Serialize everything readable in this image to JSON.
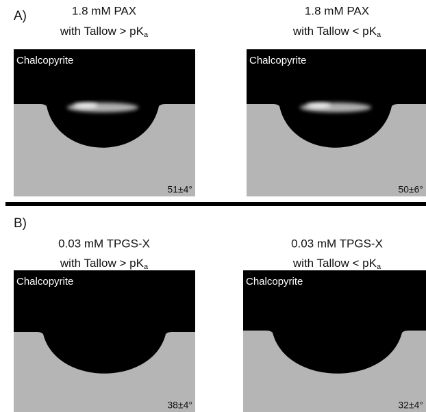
{
  "panels": [
    {
      "label": "A)",
      "images": [
        {
          "title": "1.8 mM PAX",
          "subtitle": "with Tallow > pK",
          "subscript": "a",
          "mineral": "Chalcopyrite",
          "angle": "51±4°"
        },
        {
          "title": "1.8 mM PAX",
          "subtitle": "with Tallow < pK",
          "subscript": "a",
          "mineral": "Chalcopyrite",
          "angle": "50±6°"
        }
      ]
    },
    {
      "label": "B)",
      "images": [
        {
          "title": "0.03 mM TPGS-X",
          "subtitle": "with Tallow > pK",
          "subscript": "a",
          "mineral": "Chalcopyrite",
          "angle": "38±4°"
        },
        {
          "title": "0.03 mM TPGS-X",
          "subtitle": "with Tallow < pK",
          "subscript": "a",
          "mineral": "Chalcopyrite",
          "angle": "32±4°"
        }
      ]
    }
  ]
}
